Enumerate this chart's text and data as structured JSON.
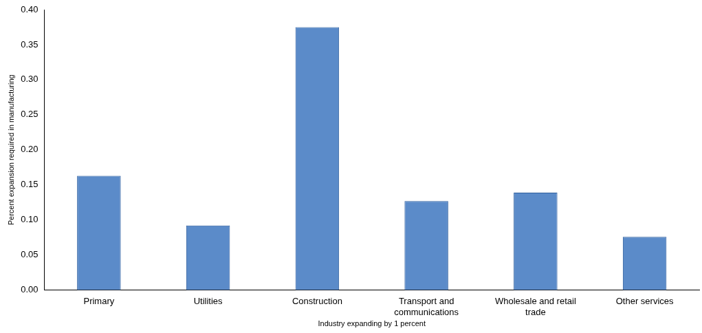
{
  "chart_data": {
    "type": "bar",
    "xlabel": "Industry expanding by 1 percent",
    "ylabel": "Percent expansion required in manufacturing",
    "categories": [
      "Primary",
      "Utilities",
      "Construction",
      "Transport and communications",
      "Wholesale and retail trade",
      "Other services"
    ],
    "values": [
      0.163,
      0.092,
      0.375,
      0.127,
      0.139,
      0.076
    ],
    "color": "#5b8bc9",
    "ylim": [
      0,
      0.4
    ],
    "yticks": [
      {
        "value": 0,
        "label": "0.00"
      },
      {
        "value": 0.05,
        "label": "0.05"
      },
      {
        "value": 0.1,
        "label": "0.10"
      },
      {
        "value": 0.15,
        "label": "0.15"
      },
      {
        "value": 0.2,
        "label": "0.20"
      },
      {
        "value": 0.25,
        "label": "0.25"
      },
      {
        "value": 0.3,
        "label": "0.30"
      },
      {
        "value": 0.35,
        "label": "0.35"
      },
      {
        "value": 0.4,
        "label": "0.40"
      }
    ],
    "grid": false,
    "legend": false
  }
}
